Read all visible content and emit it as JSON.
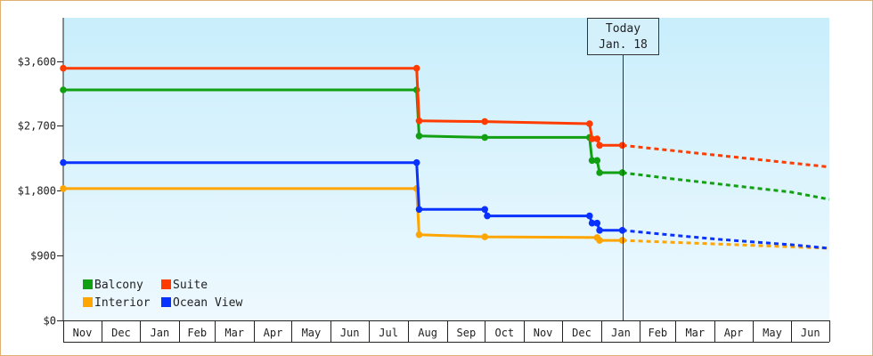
{
  "chart_data": {
    "type": "line",
    "step": true,
    "title": "",
    "xlabel": "",
    "ylabel": "",
    "ylim": [
      0,
      4200
    ],
    "y_ticks": [
      {
        "value": 0,
        "label": "$0"
      },
      {
        "value": 900,
        "label": "$900"
      },
      {
        "value": 1800,
        "label": "$1,800"
      },
      {
        "value": 2700,
        "label": "$2,700"
      },
      {
        "value": 3600,
        "label": "$3,600"
      }
    ],
    "x_axis": {
      "start": "2016-11-01",
      "end": "2018-07-01",
      "month_labels": [
        "Nov",
        "Dec",
        "Jan",
        "Feb",
        "Mar",
        "Apr",
        "May",
        "Jun",
        "Jul",
        "Aug",
        "Sep",
        "Oct",
        "Nov",
        "Dec",
        "Jan",
        "Feb",
        "Mar",
        "Apr",
        "May",
        "Jun"
      ]
    },
    "today": {
      "date": "2018-01-18",
      "line1": "Today",
      "line2": "Jan. 18"
    },
    "grid": false,
    "legend_position": "bottom-left",
    "series": [
      {
        "name": "Balcony",
        "color": "#11a011",
        "points": [
          [
            "2016-11-01",
            3200
          ],
          [
            "2017-08-08",
            3200
          ],
          [
            "2017-08-10",
            2560
          ],
          [
            "2017-10-01",
            2540
          ],
          [
            "2017-12-23",
            2540
          ],
          [
            "2017-12-25",
            2220
          ],
          [
            "2017-12-29",
            2220
          ],
          [
            "2017-12-31",
            2050
          ],
          [
            "2018-01-18",
            2050
          ]
        ],
        "forecast": [
          [
            "2018-01-18",
            2050
          ],
          [
            "2018-03-01",
            1960
          ],
          [
            "2018-04-01",
            1900
          ],
          [
            "2018-05-01",
            1840
          ],
          [
            "2018-06-01",
            1780
          ],
          [
            "2018-07-01",
            1680
          ]
        ]
      },
      {
        "name": "Suite",
        "color": "#ff3c00",
        "points": [
          [
            "2016-11-01",
            3500
          ],
          [
            "2017-08-08",
            3500
          ],
          [
            "2017-08-10",
            2770
          ],
          [
            "2017-10-01",
            2760
          ],
          [
            "2017-12-23",
            2730
          ],
          [
            "2017-12-25",
            2520
          ],
          [
            "2017-12-29",
            2520
          ],
          [
            "2017-12-31",
            2430
          ],
          [
            "2018-01-18",
            2430
          ]
        ],
        "forecast": [
          [
            "2018-01-18",
            2430
          ],
          [
            "2018-07-01",
            2130
          ]
        ]
      },
      {
        "name": "Interior",
        "color": "#ffa500",
        "points": [
          [
            "2016-11-01",
            1830
          ],
          [
            "2017-08-08",
            1830
          ],
          [
            "2017-08-10",
            1190
          ],
          [
            "2017-10-01",
            1160
          ],
          [
            "2017-12-29",
            1150
          ],
          [
            "2017-12-31",
            1110
          ],
          [
            "2018-01-18",
            1110
          ]
        ],
        "forecast": [
          [
            "2018-01-18",
            1110
          ],
          [
            "2018-07-01",
            1000
          ]
        ]
      },
      {
        "name": "Ocean View",
        "color": "#0a32ff",
        "points": [
          [
            "2016-11-01",
            2190
          ],
          [
            "2017-08-08",
            2190
          ],
          [
            "2017-08-10",
            1540
          ],
          [
            "2017-10-01",
            1540
          ],
          [
            "2017-10-03",
            1450
          ],
          [
            "2017-12-23",
            1450
          ],
          [
            "2017-12-25",
            1350
          ],
          [
            "2017-12-29",
            1350
          ],
          [
            "2017-12-31",
            1250
          ],
          [
            "2018-01-18",
            1250
          ]
        ],
        "forecast": [
          [
            "2018-01-18",
            1250
          ],
          [
            "2018-03-01",
            1180
          ],
          [
            "2018-04-01",
            1130
          ],
          [
            "2018-05-01",
            1090
          ],
          [
            "2018-06-01",
            1050
          ],
          [
            "2018-07-01",
            1000
          ]
        ]
      }
    ],
    "legend": [
      {
        "name": "Balcony",
        "color": "#11a011"
      },
      {
        "name": "Suite",
        "color": "#ff3c00"
      },
      {
        "name": "Interior",
        "color": "#ffa500"
      },
      {
        "name": "Ocean View",
        "color": "#0a32ff"
      }
    ]
  }
}
